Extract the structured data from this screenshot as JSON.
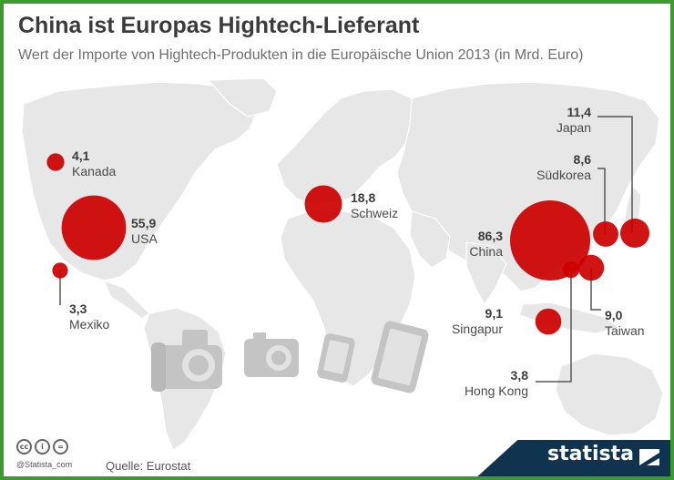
{
  "header": {
    "title": "China ist Europas Hightech-Lieferant",
    "subtitle": "Wert der Importe von Hightech-Produkten in die Europäische Union 2013 (in Mrd. Euro)"
  },
  "chart_data": {
    "type": "bubble-map",
    "title": "China ist Europas Hightech-Lieferant",
    "subtitle": "Wert der Importe von Hightech-Produkten in die Europäische Union 2013 (in Mrd. Euro)",
    "unit": "Mrd. Euro",
    "series": [
      {
        "name": "Kanada",
        "label": "4,1",
        "value": 4.1
      },
      {
        "name": "USA",
        "label": "55,9",
        "value": 55.9
      },
      {
        "name": "Mexiko",
        "label": "3,3",
        "value": 3.3
      },
      {
        "name": "Schweiz",
        "label": "18,8",
        "value": 18.8
      },
      {
        "name": "China",
        "label": "86,3",
        "value": 86.3
      },
      {
        "name": "Japan",
        "label": "11,4",
        "value": 11.4
      },
      {
        "name": "Südkorea",
        "label": "8,6",
        "value": 8.6
      },
      {
        "name": "Taiwan",
        "label": "9,0",
        "value": 9.0
      },
      {
        "name": "Singapur",
        "label": "9,1",
        "value": 9.1
      },
      {
        "name": "Hong Kong",
        "label": "3,8",
        "value": 3.8
      }
    ],
    "colors": {
      "bubble": "#cc0000",
      "land": "#e8e8e8",
      "icons": "#c7c7c7"
    }
  },
  "icons": [
    "camera-icon",
    "compact-camera-icon",
    "smartphone-icon",
    "tablet-icon"
  ],
  "footer": {
    "cc_badges": [
      "cc",
      "i",
      "="
    ],
    "handle": "@Statista_com",
    "source": "Quelle: Eurostat",
    "brand": "statista"
  }
}
